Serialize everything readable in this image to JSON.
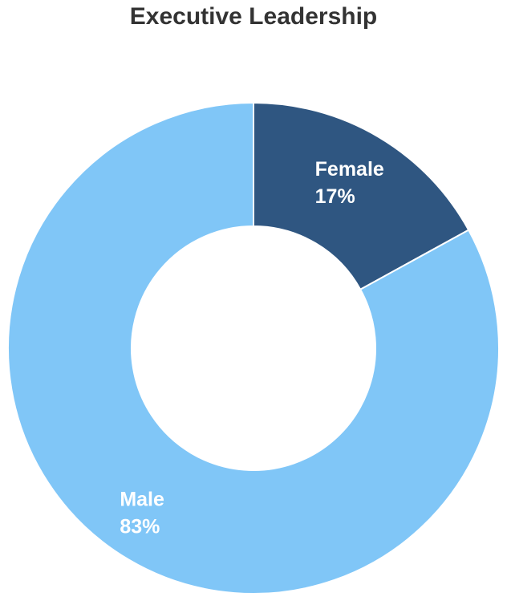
{
  "chart_data": {
    "type": "pie",
    "donut": true,
    "title": "Executive Leadership",
    "categories": [
      "Female",
      "Male"
    ],
    "values": [
      17,
      83
    ],
    "value_labels": [
      "17%",
      "83%"
    ],
    "colors": [
      "#2f5681",
      "#80c6f7"
    ]
  }
}
